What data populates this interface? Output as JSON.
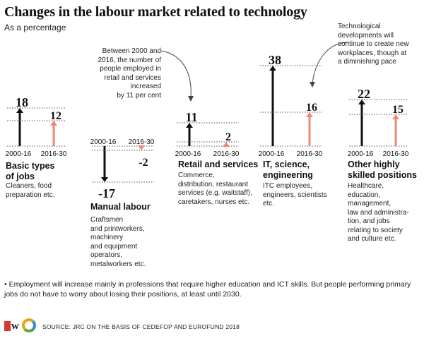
{
  "header": {
    "title": "Changes in the labour market related to technology",
    "subtitle": "As a percentage"
  },
  "annotations": {
    "retail_note": [
      "Between 2000 and",
      "2016, the number of",
      "people employed in",
      "retail and services",
      "increased",
      "by 11 per cent"
    ],
    "future_note": [
      "Technological",
      "developments will",
      "continue to create new",
      "workplaces, though at",
      "a diminishing pace"
    ]
  },
  "footnote": "• Employment will increase mainly in professions that require higher education and ICT skills. But people performing primary jobs do not have to worry about losing their positions, at least until 2030.",
  "source": "SOURCE: JRC ON THE BASIS OF CEDEFOP AND EUROFUND 2018",
  "colors": {
    "past": "#111111",
    "future": "#f0857a",
    "brand_red": "#d6382f"
  },
  "chart_data": {
    "type": "bar",
    "period_labels": [
      "2000-16",
      "2016-30"
    ],
    "categories": [
      "Basic types of jobs",
      "Manual labour",
      "Retail and services",
      "IT, science, engineering",
      "Other highly skilled positions"
    ],
    "series": [
      {
        "name": "2000-16",
        "values": [
          18,
          -17,
          11,
          38,
          22
        ]
      },
      {
        "name": "2016-30",
        "values": [
          12,
          -2,
          2,
          16,
          15
        ]
      }
    ],
    "value_labels": [
      [
        "18",
        "12"
      ],
      [
        "-17",
        "-2"
      ],
      [
        "11",
        "2"
      ],
      [
        "38",
        "16"
      ],
      [
        "22",
        "15"
      ]
    ],
    "groups": [
      {
        "title": [
          "Basic types",
          "of jobs"
        ],
        "description": [
          "Cleaners, food",
          "preparation etc."
        ]
      },
      {
        "title": [
          "Manual labour"
        ],
        "description": [
          "Craftsmen",
          "and printworkers,",
          "machinery",
          "and equipment",
          "operators,",
          "metalworkers etc."
        ]
      },
      {
        "title": [
          "Retail and services"
        ],
        "description": [
          "Commerce,",
          "distribution, restaurant",
          "services (e.g. waitstaff),",
          "caretakers, nurses etc."
        ]
      },
      {
        "title": [
          "IT, science,",
          "engineering"
        ],
        "description": [
          "ITC employees,",
          "engineers, scientists",
          "etc."
        ]
      },
      {
        "title": [
          "Other highly",
          "skilled positions"
        ],
        "description": [
          "Healthcare,",
          "education,",
          "management,",
          "law and administra-",
          "tion, and jobs",
          "relating to society",
          "and culture etc."
        ]
      }
    ]
  }
}
